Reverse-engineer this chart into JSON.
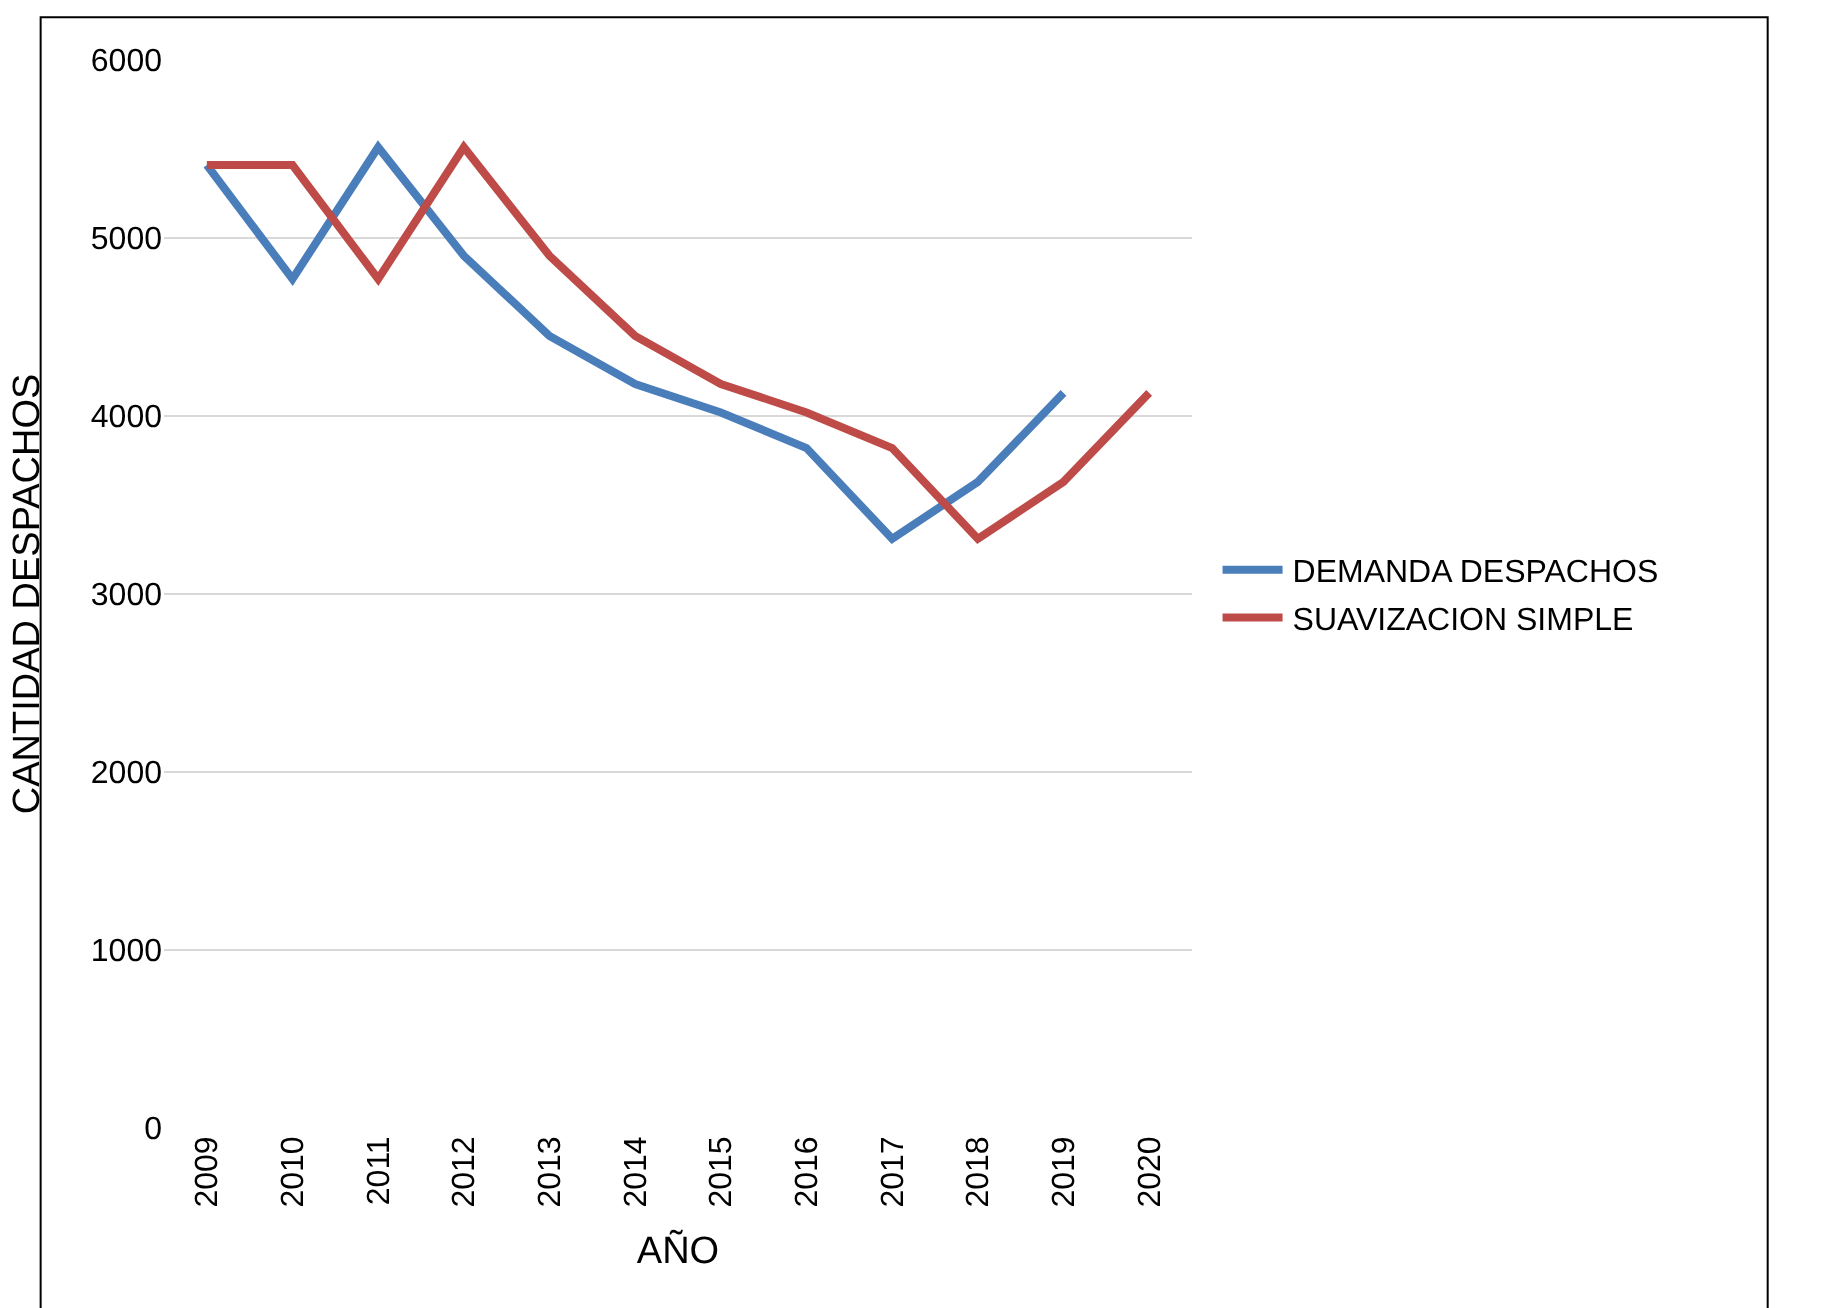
{
  "chart_data": {
    "type": "line",
    "xlabel": "AÑO",
    "ylabel": "CANTIDAD DESPACHOS",
    "categories": [
      "2009",
      "2010",
      "2011",
      "2012",
      "2013",
      "2014",
      "2015",
      "2016",
      "2017",
      "2018",
      "2019",
      "2020"
    ],
    "series": [
      {
        "name": "DEMANDA DESPACHOS",
        "color": "#4a7ebb",
        "values": [
          5410,
          4770,
          5510,
          4900,
          4450,
          4180,
          4020,
          3820,
          3310,
          3630,
          4130,
          null
        ]
      },
      {
        "name": "SUAVIZACION SIMPLE",
        "color": "#be4b48",
        "values": [
          5410,
          5410,
          4770,
          5510,
          4900,
          4450,
          4180,
          4020,
          3820,
          3310,
          3630,
          4130
        ]
      }
    ],
    "ylim": [
      0,
      6000
    ],
    "yticks": [
      0,
      1000,
      2000,
      3000,
      4000,
      5000,
      6000
    ],
    "grid": "y",
    "legend": "right",
    "marker": "none",
    "line_style": "solid"
  }
}
